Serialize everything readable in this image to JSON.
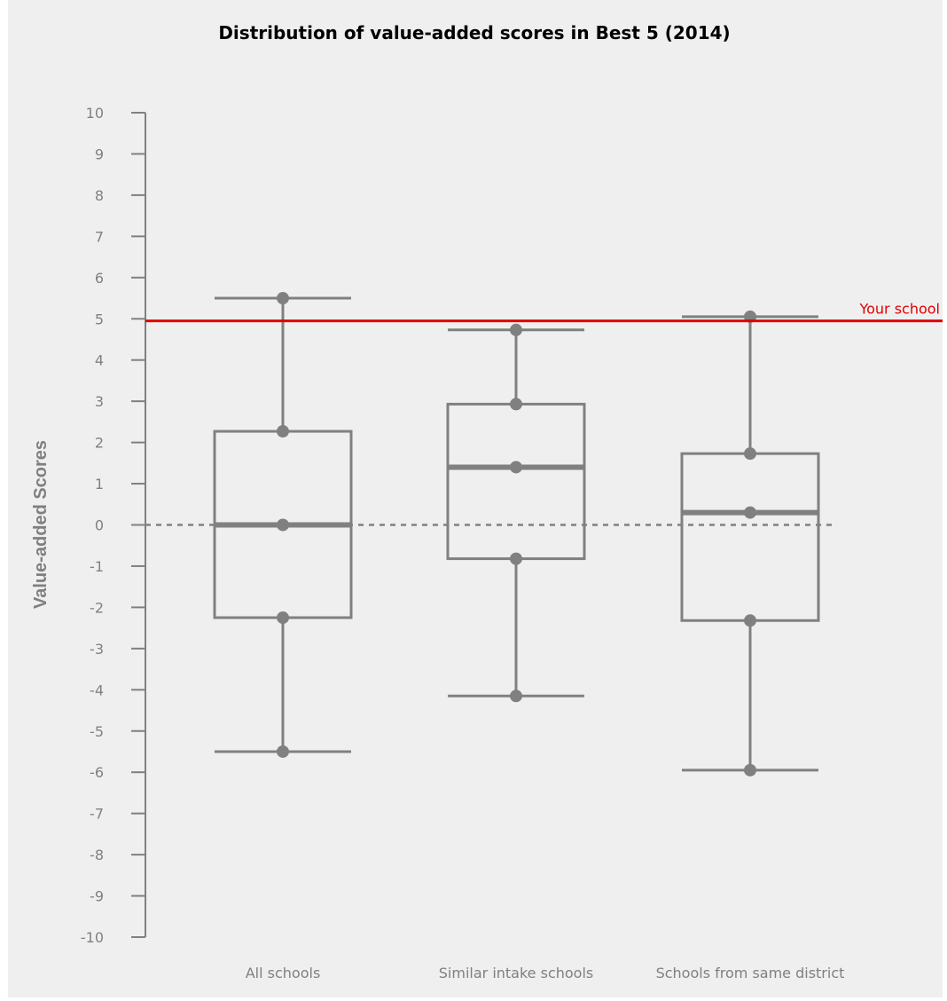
{
  "chart_data": {
    "type": "box",
    "title": "Distribution of value-added scores in Best 5 (2014)",
    "xlabel": "",
    "ylabel": "Value-added Scores",
    "ylim": [
      -10,
      10
    ],
    "yticks": [
      "10",
      "9",
      "8",
      "7",
      "6",
      "5",
      "4",
      "3",
      "2",
      "1",
      "0",
      "-1",
      "-2",
      "-3",
      "-4",
      "-5",
      "-6",
      "-7",
      "-8",
      "-9",
      "-10"
    ],
    "grid": false,
    "zero_line": {
      "value": 0,
      "style": "dashed"
    },
    "reference_line": {
      "value": 4.95,
      "label": "Your school",
      "color": "#e00000"
    },
    "box_color": "#808080",
    "categories": [
      "All schools",
      "Similar intake schools",
      "Schools from same district"
    ],
    "boxes": [
      {
        "category": "All schools",
        "min": -5.5,
        "q1": -2.25,
        "median": 0.0,
        "q3": 2.27,
        "max": 5.5
      },
      {
        "category": "Similar intake schools",
        "min": -4.15,
        "q1": -0.82,
        "median": 1.4,
        "q3": 2.93,
        "max": 4.73
      },
      {
        "category": "Schools from same district",
        "min": -5.95,
        "q1": -2.32,
        "median": 0.3,
        "q3": 1.73,
        "max": 5.05
      }
    ]
  }
}
